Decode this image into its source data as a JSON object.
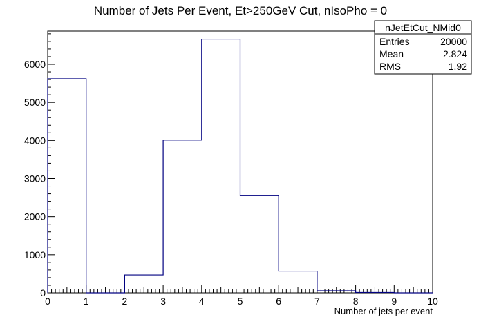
{
  "chart_data": {
    "type": "bar",
    "title": "Number of Jets Per Event, Et>250GeV Cut, nIsoPho = 0",
    "xlabel": "Number of jets per event",
    "ylabel": "",
    "x_bin_edges": [
      0,
      1,
      2,
      3,
      4,
      5,
      6,
      7,
      8,
      9,
      10
    ],
    "categories": [
      "0",
      "1",
      "2",
      "3",
      "4",
      "5",
      "6",
      "7",
      "8",
      "9"
    ],
    "values": [
      5620,
      0,
      470,
      4010,
      6660,
      2550,
      570,
      55,
      10,
      0
    ],
    "xlim": [
      0,
      10
    ],
    "ylim": [
      0,
      6870
    ],
    "x_ticks": [
      0,
      1,
      2,
      3,
      4,
      5,
      6,
      7,
      8,
      9,
      10
    ],
    "y_ticks": [
      0,
      1000,
      2000,
      3000,
      4000,
      5000,
      6000
    ],
    "grid": false,
    "line_color": "#000080",
    "stats_box": {
      "name": "nJetEtCut_NMid0",
      "rows": [
        {
          "label": "Entries",
          "value": "20000"
        },
        {
          "label": "Mean",
          "value": "2.824"
        },
        {
          "label": "RMS",
          "value": "1.92"
        }
      ]
    }
  }
}
